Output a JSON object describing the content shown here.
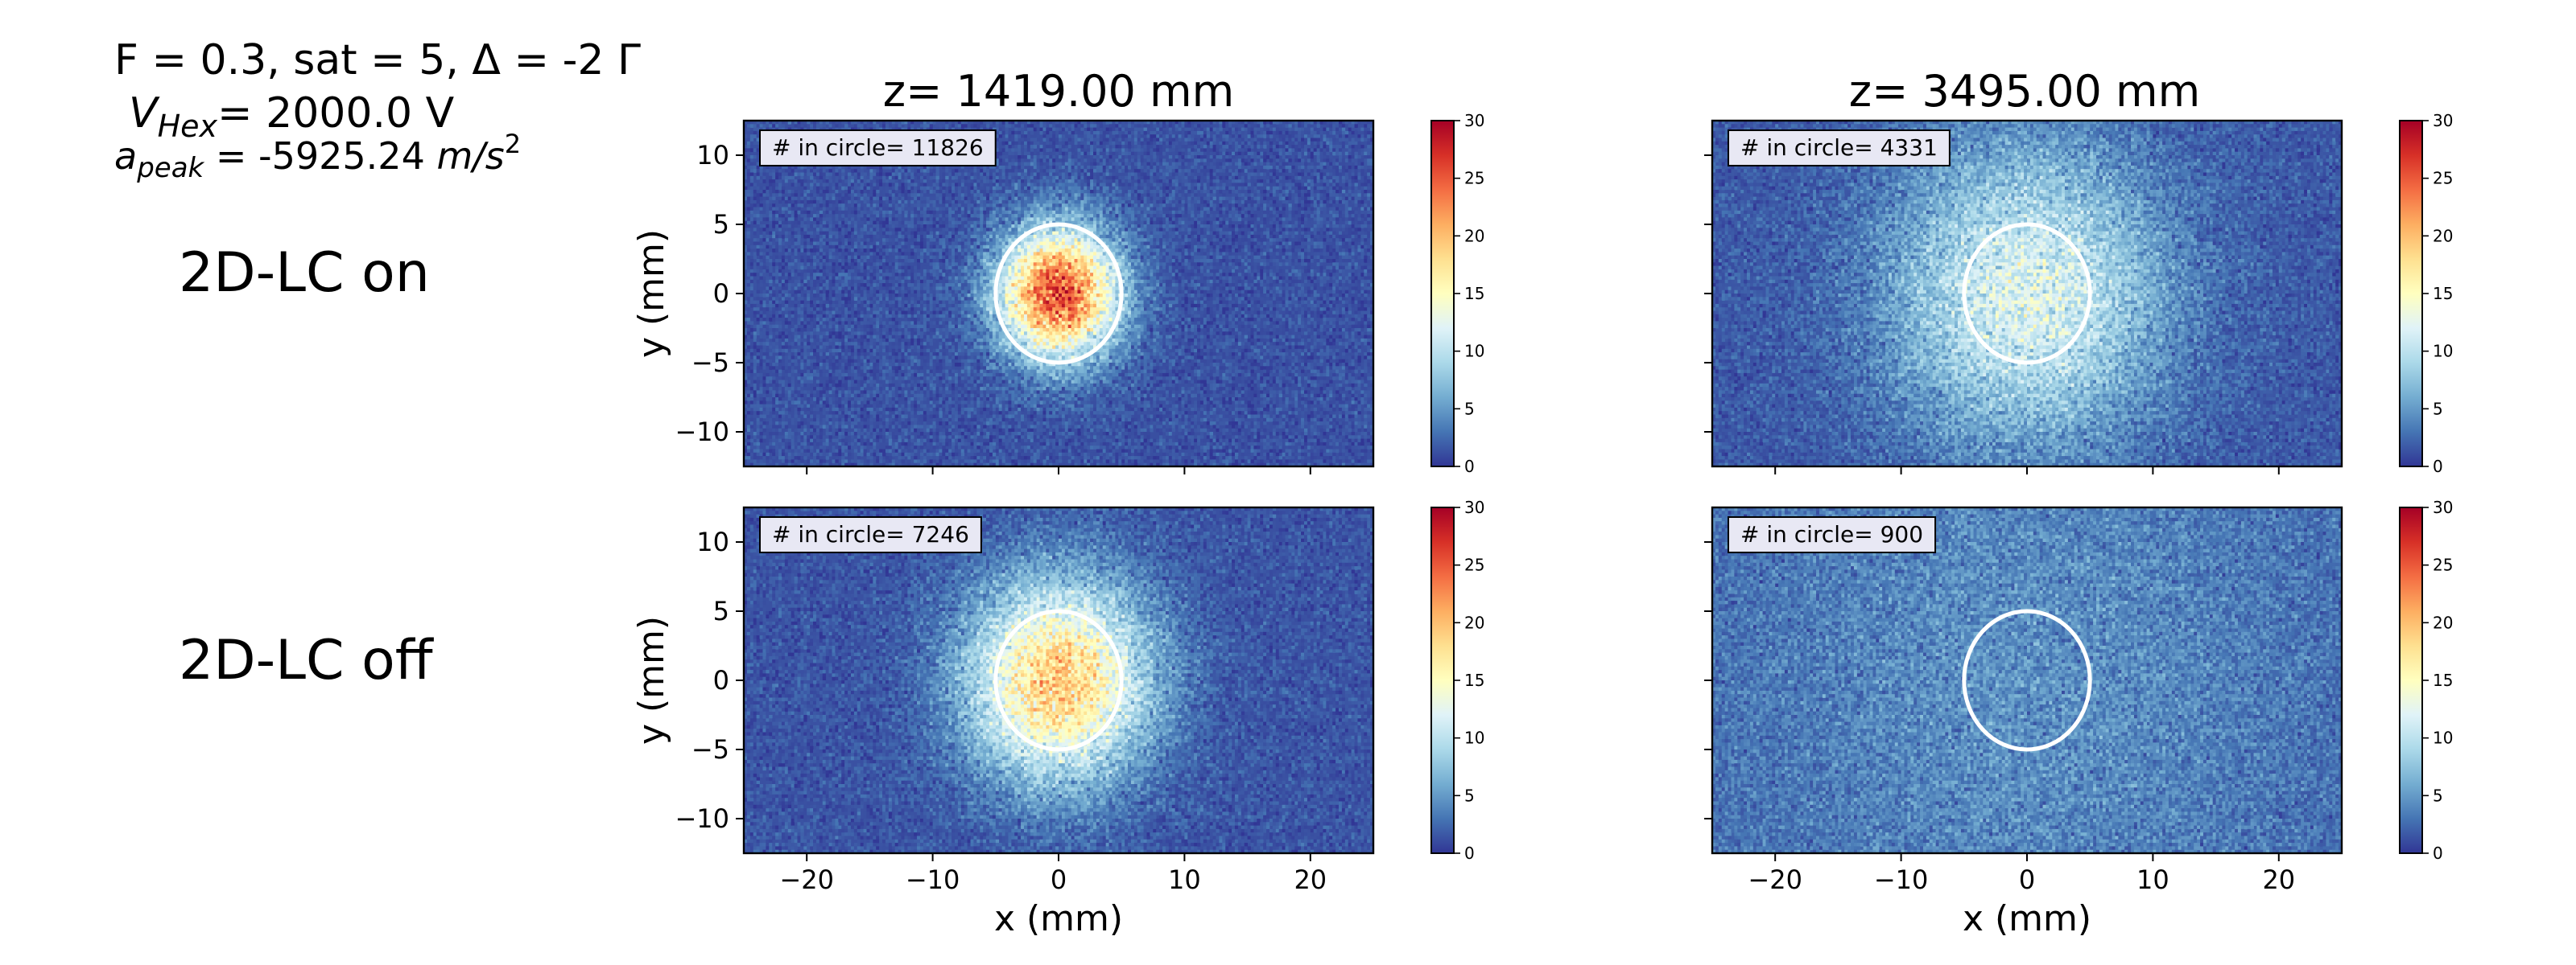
{
  "params": {
    "line1": "F = 0.3, sat = 5, Δ = -2 Γ",
    "v_symbol": "V",
    "v_sub": "Hex",
    "v_rest": "= 2000.0 V",
    "a_symbol": "a",
    "a_sub": "peak",
    "a_rest_value": " = -5925.24 ",
    "a_unit": "m/s",
    "a_unit_exp": "2"
  },
  "row_labels": [
    "2D-LC on",
    "2D-LC off"
  ],
  "column_titles": [
    "z= 1419.00 mm",
    "z= 3495.00 mm"
  ],
  "axis_labels": {
    "x": "x (mm)",
    "y": "y (mm)"
  },
  "axes": {
    "x_range": [
      -25,
      25
    ],
    "y_range": [
      -12.5,
      12.5
    ],
    "x_ticks": [
      -20,
      -10,
      0,
      10,
      20
    ],
    "x_tick_labels": [
      "−20",
      "−10",
      "0",
      "10",
      "20"
    ],
    "y_ticks": [
      10,
      5,
      0,
      -5,
      -10
    ],
    "y_tick_labels": [
      "10",
      "5",
      "0",
      "−5",
      "−10"
    ]
  },
  "colorbar": {
    "range": [
      0,
      30
    ],
    "ticks": [
      0,
      5,
      10,
      15,
      20,
      25,
      30
    ],
    "tick_labels": [
      "0",
      "5",
      "10",
      "15",
      "20",
      "25",
      "30"
    ],
    "colormap": "RdYlBu_r",
    "colors": [
      "#313695",
      "#4575b4",
      "#74add1",
      "#abd9e9",
      "#e0f3f8",
      "#ffffbf",
      "#fee090",
      "#fdae61",
      "#f46d43",
      "#d73027",
      "#a50026"
    ]
  },
  "chart_data": [
    {
      "type": "heatmap",
      "row": "2D-LC on",
      "title": "z= 1419.00 mm",
      "annotation": "# in circle= 11826",
      "count_in_circle": 11826,
      "circle_center": [
        0,
        0
      ],
      "circle_radius_mm": 5,
      "cloud_center": [
        0,
        0
      ],
      "cloud_sigma_mm": 3.2,
      "peak_count": 26,
      "background_count": 1.2,
      "xlabel": "",
      "ylabel": "y (mm)"
    },
    {
      "type": "heatmap",
      "row": "2D-LC on",
      "title": "z= 3495.00 mm",
      "annotation": "# in circle= 4331",
      "count_in_circle": 4331,
      "circle_center": [
        0,
        0
      ],
      "circle_radius_mm": 5,
      "cloud_center": [
        0,
        0
      ],
      "cloud_sigma_mm": 7.5,
      "peak_count": 12,
      "background_count": 1.5,
      "xlabel": "",
      "ylabel": ""
    },
    {
      "type": "heatmap",
      "row": "2D-LC off",
      "title": "",
      "annotation": "# in circle= 7246",
      "count_in_circle": 7246,
      "circle_center": [
        0,
        0
      ],
      "circle_radius_mm": 5,
      "cloud_center": [
        0,
        0
      ],
      "cloud_sigma_mm": 5.0,
      "peak_count": 19,
      "background_count": 1.3,
      "xlabel": "x (mm)",
      "ylabel": "y (mm)"
    },
    {
      "type": "heatmap",
      "row": "2D-LC off",
      "title": "",
      "annotation": "# in circle= 900",
      "count_in_circle": 900,
      "circle_center": [
        0,
        0
      ],
      "circle_radius_mm": 5,
      "cloud_center": [
        0,
        0
      ],
      "cloud_sigma_mm": 16,
      "peak_count": 4.5,
      "background_count": 2.2,
      "xlabel": "x (mm)",
      "ylabel": ""
    }
  ]
}
